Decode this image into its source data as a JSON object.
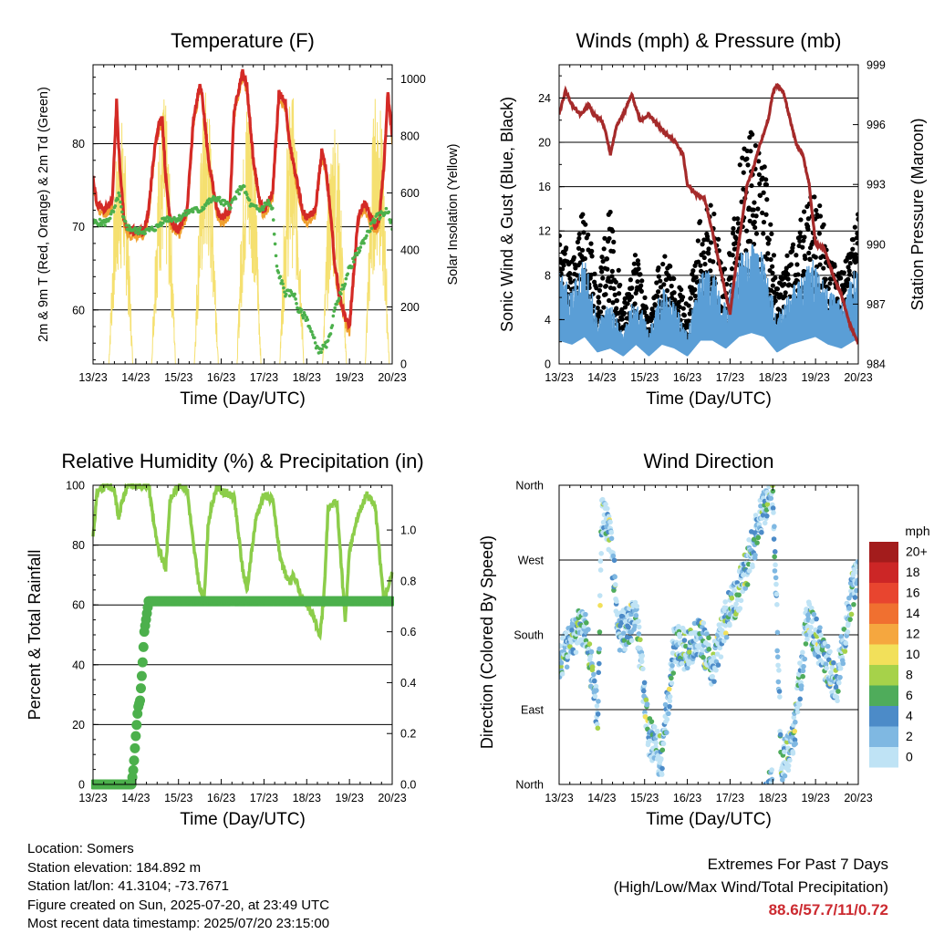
{
  "info": {
    "location": "Location: Somers",
    "elevation": "Station elevation: 184.892 m",
    "latlon": "Station lat/lon: 41.3104; -73.7671",
    "created": "Figure created on Sun, 2025-07-20, at 23:49 UTC",
    "timestamp": "Most recent data timestamp: 2025/07/20 23:15:00"
  },
  "extremes": {
    "title": "Extremes For Past 7 Days",
    "subtitle": "(High/Low/Max Wind/Total Precipitation)",
    "values": "88.6/57.7/11/0.72"
  },
  "colors": {
    "temp_2m": "#d42a26",
    "temp_9m": "#f0a030",
    "dewpoint": "#4cb04c",
    "solar": "#f5e070",
    "gust": "#000000",
    "wind": "#5a9ed6",
    "pressure": "#a52a2a",
    "rh": "#8ccd4a",
    "precip": "#4cb04c"
  },
  "chart_data": [
    {
      "type": "line",
      "title": "Temperature (F)",
      "xlabel": "Time (Day/UTC)",
      "ylabel": "2m & 9m T (Red, Orange) & 2m Td (Green)",
      "y2label": "Solar Insolation (Yellow)",
      "x_ticks": [
        "13/23",
        "14/23",
        "15/23",
        "16/23",
        "17/23",
        "18/23",
        "19/23",
        "20/23"
      ],
      "ylim": [
        53.5,
        89.5
      ],
      "y_ticks": [
        60,
        70,
        80
      ],
      "y2lim": [
        0,
        1050
      ],
      "y2_ticks": [
        0,
        200,
        400,
        600,
        800,
        1000
      ],
      "grid_y": [
        60,
        70,
        80
      ],
      "series": [
        {
          "name": "T",
          "color_key": "temp_2m",
          "x": [
            0,
            0.08,
            0.25,
            0.45,
            0.5,
            0.55,
            0.62,
            0.72,
            0.78,
            0.9,
            1.0,
            1.2,
            1.3,
            1.45,
            1.55,
            1.62,
            1.7,
            1.8,
            1.9,
            2.0,
            2.2,
            2.35,
            2.5,
            2.55,
            2.7,
            2.9,
            3.0,
            3.2,
            3.3,
            3.5,
            3.6,
            3.75,
            3.9,
            4.0,
            4.2,
            4.35,
            4.5,
            4.6,
            4.75,
            4.9,
            5.0,
            5.2,
            5.35,
            5.45,
            5.55,
            5.65,
            5.75,
            5.9,
            6.0,
            6.2,
            6.35,
            6.5,
            6.6,
            6.7,
            6.8,
            6.9,
            7.0
          ],
          "y": [
            76,
            73,
            72,
            73,
            79,
            85,
            78,
            71,
            70,
            69.5,
            69.5,
            69.5,
            72,
            80,
            82.5,
            83,
            76,
            71,
            70,
            69.5,
            72,
            83,
            87,
            86,
            78,
            72,
            71,
            72,
            84,
            88.6,
            87,
            78,
            73,
            72,
            74,
            86,
            85,
            80,
            76,
            72,
            71,
            72,
            79,
            77,
            72,
            66,
            62,
            59,
            58,
            71,
            73,
            71,
            70,
            71,
            77,
            86,
            81
          ]
        },
        {
          "name": "Td",
          "color_key": "dewpoint",
          "x": [
            0,
            0.3,
            0.5,
            0.6,
            0.7,
            0.8,
            1.0,
            1.3,
            1.5,
            1.7,
            2.0,
            2.3,
            2.5,
            2.7,
            2.9,
            3.0,
            3.2,
            3.5,
            3.7,
            3.9,
            4.1,
            4.2,
            4.3,
            4.5,
            4.7,
            4.8,
            5.0,
            5.2,
            5.3,
            5.5,
            5.7,
            5.8,
            6.0,
            6.3,
            6.6,
            6.9,
            7.0
          ],
          "y": [
            70.5,
            70.5,
            72,
            74,
            71,
            70,
            69.5,
            69.5,
            70,
            71,
            71,
            72,
            72,
            73,
            73.5,
            73,
            72.5,
            75,
            72.5,
            72,
            73,
            72,
            65,
            62,
            62,
            60,
            59,
            56,
            55,
            56,
            61,
            62,
            65,
            68,
            71,
            72,
            70
          ]
        },
        {
          "name": "Solar",
          "axis": "y2",
          "color_key": "solar",
          "day_peaks": [
            0.65,
            1.65,
            2.65,
            3.65,
            4.65,
            5.65,
            6.65
          ],
          "peak_values": [
            880,
            950,
            980,
            1000,
            960,
            880,
            1000
          ]
        }
      ]
    },
    {
      "type": "scatter",
      "title": "Winds (mph) & Pressure (mb)",
      "xlabel": "Time (Day/UTC)",
      "ylabel": "Sonic Wind & Gust (Blue, Black)",
      "y2label": "Station Pressure (Maroon)",
      "x_ticks": [
        "13/23",
        "14/23",
        "15/23",
        "16/23",
        "17/23",
        "18/23",
        "19/23",
        "20/23"
      ],
      "ylim": [
        0,
        27
      ],
      "y_ticks": [
        0,
        4,
        8,
        12,
        16,
        20,
        24
      ],
      "y2lim": [
        984,
        999
      ],
      "y2_ticks": [
        984,
        987,
        990,
        993,
        996,
        999
      ],
      "grid_y": [
        4,
        8,
        12,
        16,
        20,
        24
      ],
      "series": [
        {
          "name": "Wind",
          "color_key": "wind",
          "x": [
            0,
            0.3,
            0.6,
            0.9,
            1.2,
            1.5,
            1.8,
            2.1,
            2.4,
            2.7,
            3.0,
            3.3,
            3.6,
            3.9,
            4.2,
            4.5,
            4.8,
            5.1,
            5.4,
            5.7,
            6.0,
            6.3,
            6.6,
            6.9,
            7.0
          ],
          "y": [
            6,
            5,
            7,
            3,
            4,
            2,
            5,
            2,
            5,
            4,
            2,
            6,
            6,
            4,
            7,
            8,
            7,
            3,
            5,
            6,
            7,
            5,
            4,
            6,
            6
          ]
        },
        {
          "name": "Gust",
          "color_key": "gust",
          "x": [
            0,
            0.3,
            0.6,
            0.9,
            1.2,
            1.5,
            1.8,
            2.1,
            2.4,
            2.7,
            3.0,
            3.3,
            3.6,
            3.9,
            4.2,
            4.5,
            4.8,
            5.1,
            5.4,
            5.7,
            6.0,
            6.3,
            6.6,
            6.9,
            7.0
          ],
          "y": [
            9,
            7,
            11,
            5,
            12,
            4,
            8,
            3,
            8,
            6,
            4,
            10,
            11,
            6,
            13,
            17,
            14,
            5,
            8,
            10,
            12,
            8,
            6,
            10,
            10
          ]
        },
        {
          "name": "Pressure",
          "axis": "y2",
          "color_key": "pressure",
          "x": [
            0,
            0.15,
            0.3,
            0.5,
            0.7,
            0.8,
            1.0,
            1.1,
            1.2,
            1.35,
            1.5,
            1.7,
            1.9,
            2.1,
            2.3,
            2.5,
            2.7,
            2.9,
            3.0,
            3.2,
            3.4,
            3.6,
            3.8,
            4.0,
            4.2,
            4.4,
            4.5,
            4.7,
            4.9,
            5.0,
            5.1,
            5.25,
            5.4,
            5.55,
            5.7,
            5.85,
            6.0,
            6.2,
            6.4,
            6.6,
            6.8,
            7.0
          ],
          "y": [
            996.5,
            997.7,
            997,
            996.5,
            997,
            996.5,
            996.2,
            995.5,
            994.5,
            996,
            996.5,
            997.5,
            996.2,
            996.5,
            996,
            995.5,
            995.2,
            994.5,
            993,
            992.5,
            992.3,
            990.5,
            988.5,
            986.5,
            990,
            993,
            993.5,
            995,
            996.3,
            997.6,
            998,
            997.6,
            996.3,
            995,
            994.5,
            993,
            990,
            989.8,
            988.5,
            987.5,
            986,
            985
          ]
        }
      ]
    },
    {
      "type": "line",
      "title": "Relative Humidity (%) & Precipitation (in)",
      "xlabel": "Time (Day/UTC)",
      "ylabel": "Percent & Total Rainfall",
      "x_ticks": [
        "13/23",
        "14/23",
        "15/23",
        "16/23",
        "17/23",
        "18/23",
        "19/23",
        "20/23"
      ],
      "ylim": [
        0,
        100
      ],
      "y_ticks": [
        0,
        20,
        40,
        60,
        80,
        100
      ],
      "y2lim": [
        0,
        1.176
      ],
      "y2_ticks": [
        0.0,
        0.2,
        0.4,
        0.6,
        0.8,
        1.0
      ],
      "y2_tick_labels": [
        "0.0",
        "0.2",
        "0.4",
        "0.6",
        "0.8",
        "1.0"
      ],
      "grid_y": [
        20,
        40,
        60,
        80
      ],
      "series": [
        {
          "name": "RH",
          "color_key": "rh",
          "x": [
            0,
            0.1,
            0.3,
            0.5,
            0.6,
            0.7,
            0.8,
            1.0,
            1.3,
            1.5,
            1.7,
            1.8,
            2.0,
            2.2,
            2.35,
            2.5,
            2.6,
            2.7,
            2.9,
            3.0,
            3.3,
            3.5,
            3.6,
            3.8,
            4.0,
            4.2,
            4.4,
            4.6,
            4.7,
            4.9,
            5.0,
            5.2,
            5.3,
            5.4,
            5.5,
            5.7,
            5.9,
            6.0,
            6.2,
            6.4,
            6.6,
            6.8,
            7.0
          ],
          "y": [
            83,
            98,
            100,
            98,
            89,
            96,
            100,
            100,
            100,
            80,
            72,
            95,
            100,
            99,
            80,
            65,
            63,
            88,
            100,
            98,
            96,
            72,
            65,
            88,
            97,
            95,
            74,
            67,
            70,
            62,
            60,
            55,
            49,
            62,
            92,
            95,
            55,
            78,
            90,
            97,
            93,
            62,
            70
          ]
        },
        {
          "name": "Precip",
          "axis": "y2",
          "color_key": "precip",
          "x": [
            0,
            0.9,
            0.95,
            1.0,
            1.05,
            1.1,
            1.15,
            1.2,
            1.3,
            7.0
          ],
          "y": [
            0,
            0,
            0.07,
            0.19,
            0.3,
            0.33,
            0.45,
            0.6,
            0.72,
            0.72
          ]
        }
      ]
    },
    {
      "type": "scatter",
      "title": "Wind Direction",
      "xlabel": "Time (Day/UTC)",
      "ylabel": "Direction (Colored By Speed)",
      "x_ticks": [
        "13/23",
        "14/23",
        "15/23",
        "16/23",
        "17/23",
        "18/23",
        "19/23",
        "20/23"
      ],
      "y_tick_labels": [
        "North",
        "East",
        "South",
        "West",
        "North"
      ],
      "ylim": [
        0,
        360
      ],
      "grid_y": [
        90,
        180,
        270
      ],
      "colorbar": {
        "title": "mph",
        "labels": [
          "20+",
          "18",
          "16",
          "14",
          "12",
          "10",
          "8",
          "6",
          "4",
          "2",
          "0"
        ],
        "colors": [
          "#a31c1c",
          "#cc2626",
          "#e8452f",
          "#f07030",
          "#f5a73f",
          "#f2e05a",
          "#a6d24a",
          "#4fac5b",
          "#4c8bc8",
          "#7fb8e2",
          "#bfe3f5"
        ]
      },
      "series": [
        {
          "name": "Direction",
          "x": [
            0,
            0.3,
            0.6,
            0.9,
            1.0,
            1.2,
            1.4,
            1.8,
            2.1,
            2.4,
            2.7,
            3.0,
            3.3,
            3.6,
            3.9,
            4.2,
            4.5,
            4.7,
            4.9,
            5.0,
            5.2,
            5.5,
            5.8,
            6.0,
            6.2,
            6.5,
            6.8,
            7.0
          ],
          "y": [
            150,
            175,
            195,
            80,
            330,
            300,
            180,
            200,
            60,
            30,
            170,
            160,
            180,
            140,
            200,
            230,
            280,
            320,
            350,
            360,
            20,
            60,
            200,
            180,
            150,
            120,
            220,
            260
          ]
        }
      ]
    }
  ]
}
